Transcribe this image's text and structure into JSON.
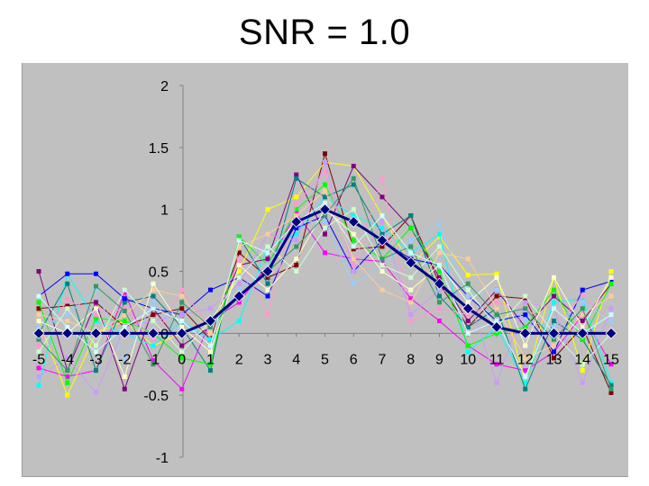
{
  "page": {
    "title": "SNR = 1.0"
  },
  "colors": {
    "plot_background": "#c0c0c0",
    "axis": "#808080",
    "mean_series": "#000080"
  },
  "chart_data": {
    "type": "line",
    "title": "SNR = 1.0",
    "xlabel": "",
    "ylabel": "",
    "x": [
      -5,
      -4,
      -3,
      -2,
      -1,
      0,
      1,
      2,
      3,
      4,
      5,
      6,
      7,
      8,
      9,
      10,
      11,
      12,
      13,
      14,
      15
    ],
    "x_tick_labels": [
      "-5",
      "-4",
      "-3",
      "-2",
      "-1",
      "0",
      "1",
      "2",
      "3",
      "4",
      "5",
      "6",
      "7",
      "8",
      "9",
      "10",
      "11",
      "12",
      "13",
      "14",
      "15"
    ],
    "y_ticks": [
      -1,
      -0.5,
      0,
      0.5,
      1,
      1.5,
      2
    ],
    "y_tick_labels": [
      "-1",
      "-0.5",
      "0",
      "0.5",
      "1",
      "1.5",
      "2"
    ],
    "xlim": [
      -5,
      15
    ],
    "ylim": [
      -1,
      2
    ],
    "grid": false,
    "legend": "none",
    "mean_series": {
      "color": "#000080",
      "values": [
        0,
        0,
        0,
        0,
        0,
        0,
        0.1,
        0.3,
        0.5,
        0.9,
        1.0,
        0.9,
        0.75,
        0.57,
        0.4,
        0.2,
        0.05,
        0,
        0,
        0,
        0
      ]
    },
    "series": [
      {
        "color": "#ff00ff",
        "values": [
          -0.28,
          -0.35,
          -0.3,
          0.33,
          -0.22,
          -0.45,
          0.1,
          0.25,
          0.55,
          0.97,
          0.65,
          0.6,
          0.58,
          0.28,
          0.1,
          -0.1,
          -0.25,
          -0.3,
          -0.15,
          0.15,
          -0.25
        ]
      },
      {
        "color": "#800000",
        "values": [
          0.2,
          0.22,
          0.25,
          0.05,
          0.15,
          0.2,
          -0.05,
          0.65,
          0.45,
          0.55,
          1.45,
          0.68,
          0.7,
          0.95,
          0.4,
          0.05,
          0.3,
          0.28,
          -0.2,
          0.05,
          -0.48
        ]
      },
      {
        "color": "#ffff00",
        "values": [
          0.1,
          -0.5,
          0,
          0.1,
          -0.1,
          0,
          0.05,
          0.5,
          1.0,
          1.1,
          1.38,
          1.35,
          0.95,
          0.55,
          0.78,
          0.47,
          0.48,
          -0.4,
          0.45,
          -0.3,
          0.5
        ]
      },
      {
        "color": "#00ffff",
        "values": [
          -0.42,
          0.48,
          0.1,
          0.0,
          -0.1,
          0.1,
          -0.05,
          0.1,
          0.7,
          0.8,
          1.1,
          0.95,
          0.85,
          0.65,
          0.8,
          -0.15,
          0.05,
          -0.4,
          0.25,
          0.28,
          -0.4
        ]
      },
      {
        "color": "#800080",
        "values": [
          0.5,
          -0.3,
          0.25,
          -0.45,
          0.2,
          -0.1,
          0.05,
          0.55,
          0.6,
          1.28,
          0.8,
          1.35,
          1.1,
          0.85,
          0.45,
          0.1,
          0.35,
          0.05,
          0.3,
          0.1,
          0.4
        ]
      },
      {
        "color": "#008080",
        "values": [
          0.0,
          0.4,
          -0.3,
          0.25,
          0.3,
          0.05,
          -0.3,
          0.78,
          0.4,
          1.25,
          1.1,
          1.2,
          0.8,
          0.95,
          0.3,
          0.05,
          0.2,
          -0.45,
          0.1,
          -0.05,
          -0.42
        ]
      },
      {
        "color": "#0000ff",
        "values": [
          0.3,
          0.48,
          0.48,
          0.28,
          0.2,
          0.15,
          0.35,
          0.45,
          0.3,
          0.85,
          0.95,
          0.5,
          0.75,
          0.6,
          0.55,
          0.3,
          0.1,
          0.15,
          -0.15,
          0.35,
          0.42
        ]
      },
      {
        "color": "#00ff00",
        "values": [
          0.25,
          -0.4,
          0.12,
          0.1,
          0.0,
          -0.2,
          -0.25,
          0.78,
          0.55,
          1.0,
          1.2,
          0.75,
          0.6,
          0.85,
          0.5,
          -0.1,
          0.0,
          0.05,
          0.35,
          -0.05,
          0.4
        ]
      },
      {
        "color": "#ff99cc",
        "values": [
          -0.1,
          0.27,
          0.15,
          0.2,
          -0.05,
          0.35,
          0.05,
          0.6,
          0.15,
          1.05,
          1.3,
          0.55,
          1.25,
          0.1,
          0.2,
          0.15,
          0.25,
          0.2,
          0.05,
          0.3,
          0.1
        ]
      },
      {
        "color": "#cc99ff",
        "values": [
          -0.35,
          -0.2,
          -0.48,
          0.05,
          0.1,
          0.15,
          0.2,
          0.4,
          0.8,
          0.75,
          1.38,
          0.5,
          0.9,
          0.15,
          0.35,
          0.3,
          -0.4,
          0.25,
          0.2,
          -0.4,
          0.2
        ]
      },
      {
        "color": "#99ccff",
        "values": [
          0.05,
          0.15,
          0.35,
          -0.2,
          0.25,
          0.0,
          0.05,
          0.35,
          0.55,
          0.9,
          0.9,
          0.4,
          0.55,
          0.75,
          0.88,
          0.3,
          0.35,
          0.1,
          0.05,
          0.25,
          0.1
        ]
      },
      {
        "color": "#ffcc99",
        "values": [
          0.15,
          0.1,
          0.0,
          0.15,
          0.35,
          0.3,
          0.0,
          0.7,
          0.8,
          0.95,
          1.15,
          0.6,
          0.35,
          0.25,
          0.65,
          0.6,
          0.2,
          -0.2,
          -0.1,
          0.15,
          0.3
        ]
      },
      {
        "color": "#ccffcc",
        "values": [
          -0.15,
          0.2,
          -0.1,
          0.35,
          0.1,
          -0.15,
          0.1,
          0.45,
          0.7,
          0.5,
          0.85,
          1.0,
          0.55,
          0.45,
          0.7,
          0.35,
          0.05,
          0.3,
          0.0,
          -0.25,
          0.0
        ]
      },
      {
        "color": "#ffffcc",
        "values": [
          0.1,
          0.0,
          0.2,
          -0.35,
          0.4,
          0.05,
          -0.15,
          0.55,
          0.35,
          0.6,
          1.0,
          0.8,
          0.5,
          0.35,
          0.55,
          0.25,
          0.45,
          -0.1,
          0.45,
          0.05,
          0.45
        ]
      },
      {
        "color": "#339966",
        "values": [
          -0.05,
          -0.3,
          0.38,
          0.18,
          -0.25,
          0.25,
          0.05,
          0.3,
          0.5,
          0.7,
          0.95,
          1.25,
          0.6,
          0.7,
          0.25,
          0.4,
          0.15,
          0.2,
          -0.05,
          0.2,
          -0.45
        ]
      },
      {
        "color": "#ccffff",
        "values": [
          0.3,
          0.05,
          -0.15,
          0.05,
          0.2,
          0.1,
          -0.1,
          0.75,
          0.65,
          0.9,
          1.05,
          0.7,
          0.95,
          0.65,
          0.55,
          0.0,
          0.1,
          -0.35,
          0.2,
          0.0,
          0.15
        ]
      }
    ]
  }
}
